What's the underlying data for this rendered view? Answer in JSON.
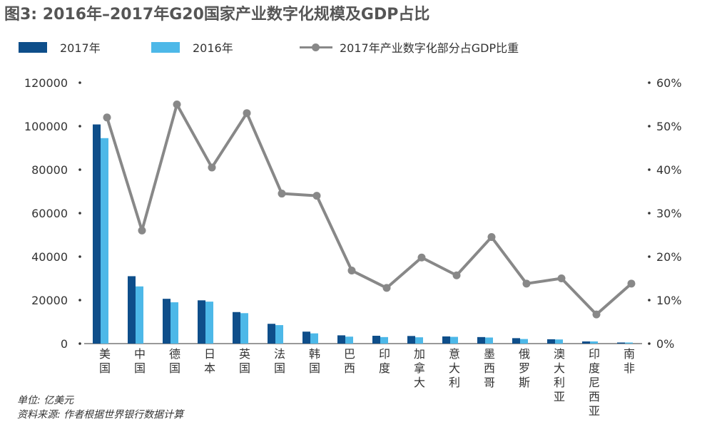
{
  "header": {
    "title": "图3: 2016年–2017年G20国家产业数字化规模及GDP占比"
  },
  "legend": {
    "s2017": "2017年",
    "s2016": "2016年",
    "ratio": "2017年产业数字化部分占GDP比重"
  },
  "colors": {
    "s2017": "#0e4e8a",
    "s2016": "#4db8e8",
    "ratio": "#888888"
  },
  "footer": {
    "unit": "单位: 亿美元",
    "source": "资料来源: 作者根据世界银行数据计算"
  },
  "chart_data": {
    "type": "bar",
    "categories": [
      "美国",
      "中国",
      "德国",
      "日本",
      "英国",
      "法国",
      "韩国",
      "巴西",
      "印度",
      "加拿大",
      "意大利",
      "墨西哥",
      "俄罗斯",
      "澳大利亚",
      "印度尼西亚",
      "南非"
    ],
    "series": [
      {
        "name": "2017年",
        "type": "bar",
        "axis": "left",
        "values": [
          100800,
          31000,
          20600,
          19900,
          14500,
          9100,
          5500,
          3800,
          3600,
          3500,
          3300,
          3000,
          2500,
          2000,
          1000,
          500
        ]
      },
      {
        "name": "2016年",
        "type": "bar",
        "axis": "left",
        "values": [
          94500,
          26300,
          19000,
          19300,
          14000,
          8500,
          4700,
          3200,
          3000,
          2900,
          3100,
          2800,
          2100,
          1900,
          1000,
          500
        ]
      },
      {
        "name": "2017年产业数字化部分占GDP比重",
        "type": "line",
        "axis": "right",
        "values": [
          52,
          26,
          55,
          40.5,
          53,
          34.5,
          34,
          16.8,
          12.8,
          19.8,
          15.7,
          24.5,
          13.8,
          15,
          6.7,
          13.8
        ]
      }
    ],
    "y_left": {
      "ylim": [
        0,
        120000
      ],
      "ticks": [
        "0",
        "20000",
        "40000",
        "60000",
        "80000",
        "100000",
        "120000"
      ]
    },
    "y_right": {
      "ylim": [
        0,
        60
      ],
      "ticks": [
        "0%",
        "10%",
        "20%",
        "30%",
        "40%",
        "50%",
        "60%"
      ]
    },
    "grid": false,
    "legend_position": "top"
  }
}
